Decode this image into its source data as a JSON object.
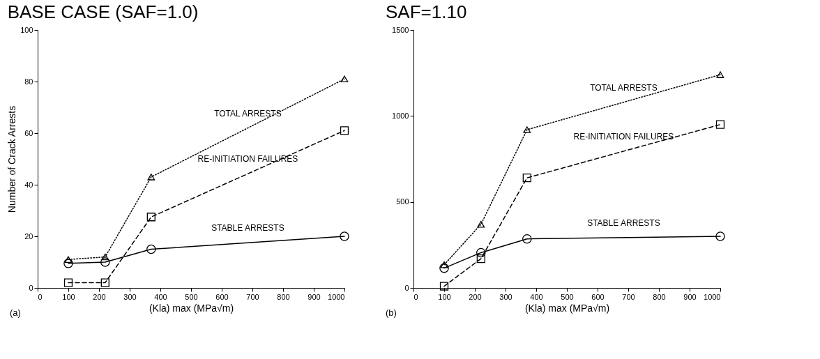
{
  "chart_data": [
    {
      "type": "line",
      "title": "BASE CASE (SAF=1.0)",
      "xlabel": "(Kla) max (MPa√m)",
      "ylabel": "Number of Crack Arrests",
      "annotations": [
        "(a)"
      ],
      "x": [
        100,
        220,
        370,
        1000
      ],
      "xlim": [
        0,
        1000
      ],
      "xticks": [
        0,
        100,
        200,
        300,
        400,
        500,
        600,
        700,
        800,
        900,
        1000
      ],
      "ylim": [
        0,
        100
      ],
      "yticks": [
        0,
        20,
        40,
        60,
        80,
        100
      ],
      "grid": false,
      "series": [
        {
          "name": "TOTAL ARRESTS",
          "color": "#000000",
          "marker": "triangle",
          "line_style": "dotted",
          "values": [
            11,
            12,
            43,
            81
          ]
        },
        {
          "name": "RE-INITIATION FAILURES",
          "color": "#000000",
          "marker": "square",
          "line_style": "dashed",
          "values": [
            2,
            2,
            27.5,
            61
          ]
        },
        {
          "name": "STABLE ARRESTS",
          "color": "#000000",
          "marker": "circle",
          "line_style": "solid",
          "values": [
            9.5,
            10,
            15,
            20
          ]
        }
      ]
    },
    {
      "type": "line",
      "title": "SAF=1.10",
      "xlabel": "(Kla) max (MPa√m)",
      "annotations": [
        "(b)"
      ],
      "x": [
        100,
        220,
        370,
        1000
      ],
      "xlim": [
        0,
        1000
      ],
      "xticks": [
        0,
        100,
        200,
        300,
        400,
        500,
        600,
        700,
        800,
        900,
        1000
      ],
      "ylim": [
        0,
        1500
      ],
      "yticks": [
        0,
        500,
        1000,
        1500
      ],
      "grid": false,
      "series": [
        {
          "name": "TOTAL ARRESTS",
          "color": "#000000",
          "marker": "triangle",
          "line_style": "dotted",
          "values": [
            135,
            370,
            920,
            1240
          ]
        },
        {
          "name": "RE-INITIATION FAILURES",
          "color": "#000000",
          "marker": "square",
          "line_style": "dashed",
          "values": [
            10,
            170,
            640,
            950
          ]
        },
        {
          "name": "STABLE ARRESTS",
          "color": "#000000",
          "marker": "circle",
          "line_style": "solid",
          "values": [
            115,
            205,
            285,
            300
          ]
        }
      ]
    }
  ]
}
